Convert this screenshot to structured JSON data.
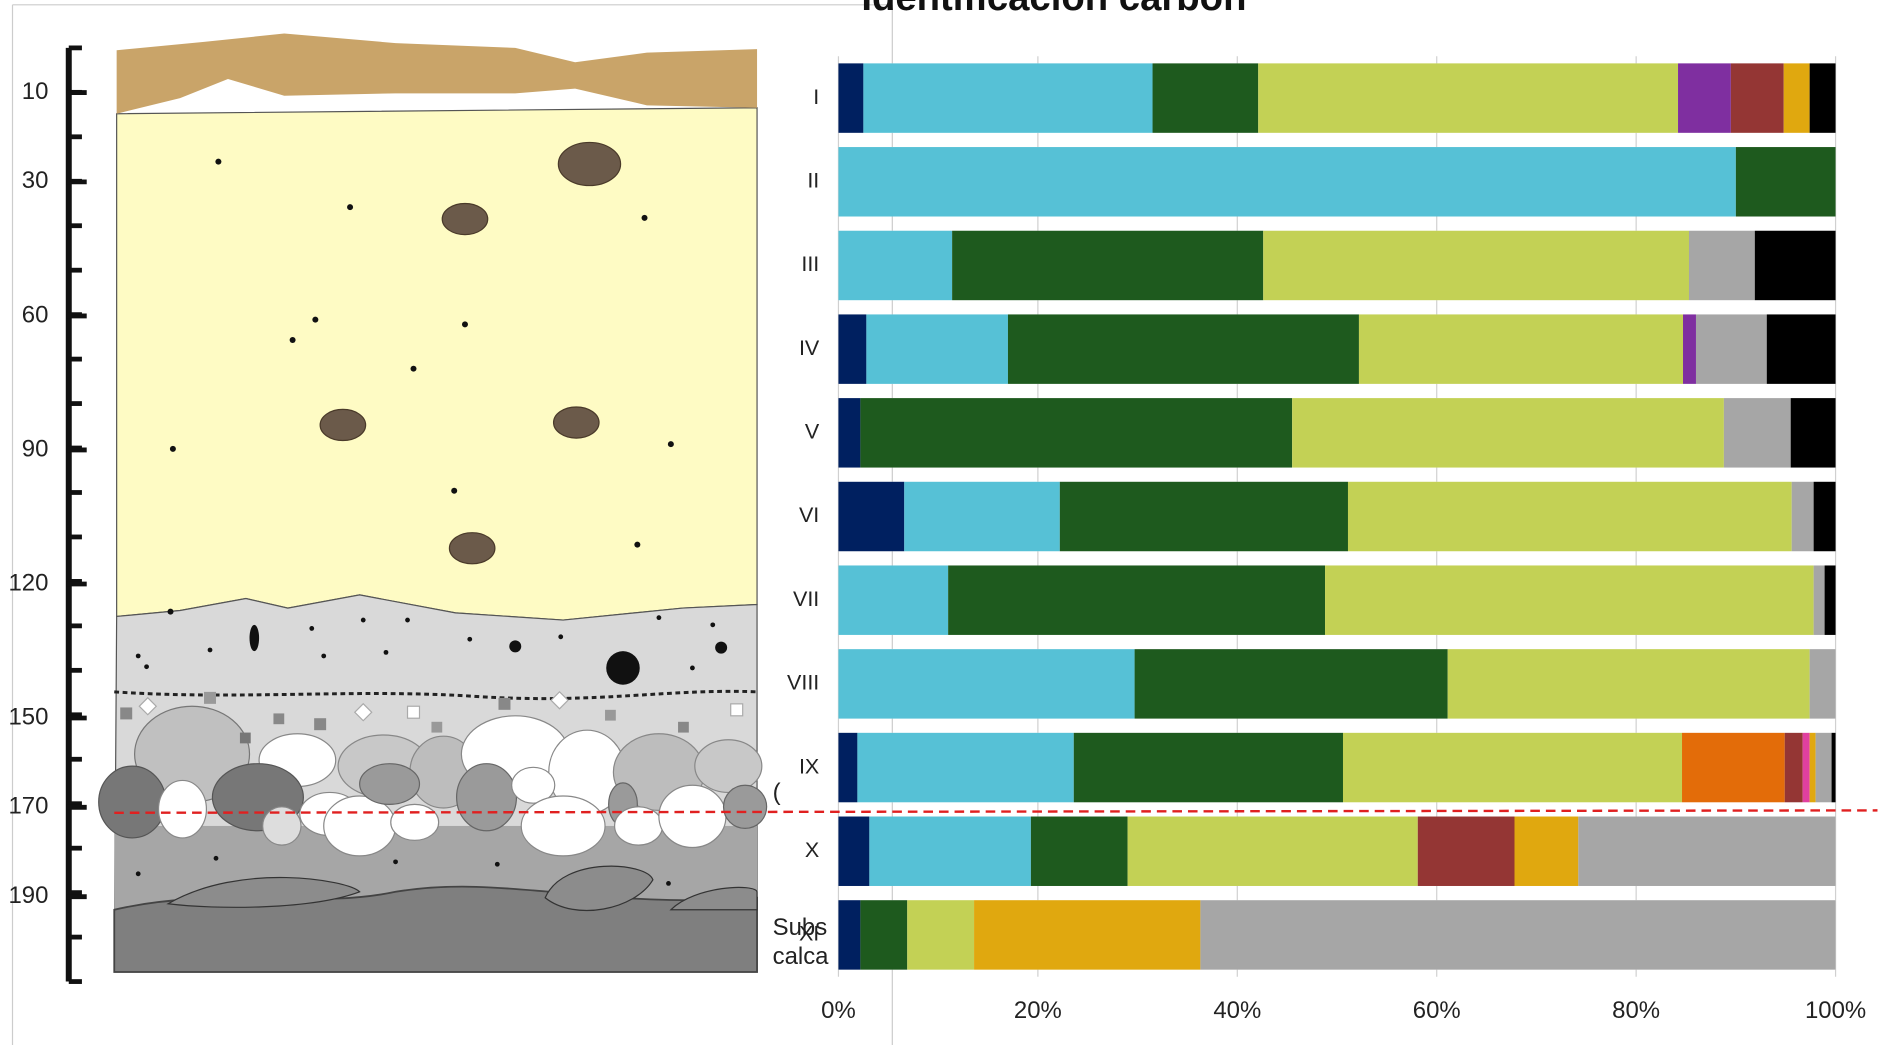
{
  "chart_data": [
    {
      "type": "depth-profile",
      "ylim": [
        0,
        209
      ],
      "yticks": [
        10,
        30,
        60,
        90,
        120,
        150,
        170,
        190
      ],
      "annotations": [
        "Subs",
        "calca",
        "("
      ]
    },
    {
      "type": "bar",
      "title": "Identificación carbón",
      "categories": [
        "I",
        "II",
        "III",
        "IV",
        "V",
        "VI",
        "VII",
        "VIII",
        "IX",
        "X",
        "XI"
      ],
      "series": [
        {
          "color": "#002060",
          "values": [
            2.5,
            0,
            0,
            2.8,
            2.2,
            6.6,
            0,
            0,
            1.9,
            3.1,
            2.2
          ]
        },
        {
          "color": "#56c1d6",
          "values": [
            29.0,
            90.0,
            11.4,
            14.2,
            0,
            15.6,
            11.0,
            29.7,
            21.7,
            16.2,
            0
          ]
        },
        {
          "color": "#1e5a1e",
          "values": [
            10.6,
            10.0,
            31.2,
            35.2,
            43.3,
            28.9,
            37.8,
            31.4,
            27.0,
            9.7,
            4.7
          ]
        },
        {
          "color": "#c3d155",
          "values": [
            42.1,
            0,
            42.7,
            32.5,
            43.3,
            44.5,
            49.0,
            36.3,
            34.0,
            29.1,
            6.7
          ]
        },
        {
          "color": "#7f2fa0",
          "values": [
            5.3,
            0,
            0,
            1.3,
            0,
            0,
            0,
            0,
            0,
            0,
            0
          ]
        },
        {
          "color": "#e36c09",
          "values": [
            0,
            0,
            0,
            0,
            0,
            0,
            0,
            0,
            10.3,
            0,
            0
          ]
        },
        {
          "color": "#943634",
          "values": [
            5.3,
            0,
            0,
            0,
            0,
            0,
            0,
            0,
            1.8,
            9.7,
            0
          ]
        },
        {
          "color": "#e040a0",
          "values": [
            0,
            0,
            0,
            0,
            0,
            0,
            0,
            0,
            0.7,
            0,
            0
          ]
        },
        {
          "color": "#e0a80f",
          "values": [
            2.6,
            0,
            0,
            0,
            0,
            0,
            0,
            0,
            0.6,
            6.4,
            22.7
          ]
        },
        {
          "color": "#a6a6a6",
          "values": [
            0,
            0,
            6.6,
            7.1,
            6.7,
            2.2,
            1.1,
            2.6,
            1.6,
            25.8,
            63.7
          ]
        },
        {
          "color": "#000000",
          "values": [
            2.6,
            0,
            8.1,
            6.9,
            4.5,
            2.2,
            1.1,
            0,
            0.4,
            0,
            0
          ]
        }
      ],
      "stacked": true,
      "orientation": "horizontal",
      "xlim": [
        0,
        100
      ],
      "xticks": [
        {
          "value": 0,
          "label": "0%"
        },
        {
          "value": 20,
          "label": "20%"
        },
        {
          "value": 40,
          "label": "40%"
        },
        {
          "value": 60,
          "label": "60%"
        },
        {
          "value": 80,
          "label": "80%"
        },
        {
          "value": 100,
          "label": "100%"
        }
      ],
      "grid": true
    }
  ]
}
